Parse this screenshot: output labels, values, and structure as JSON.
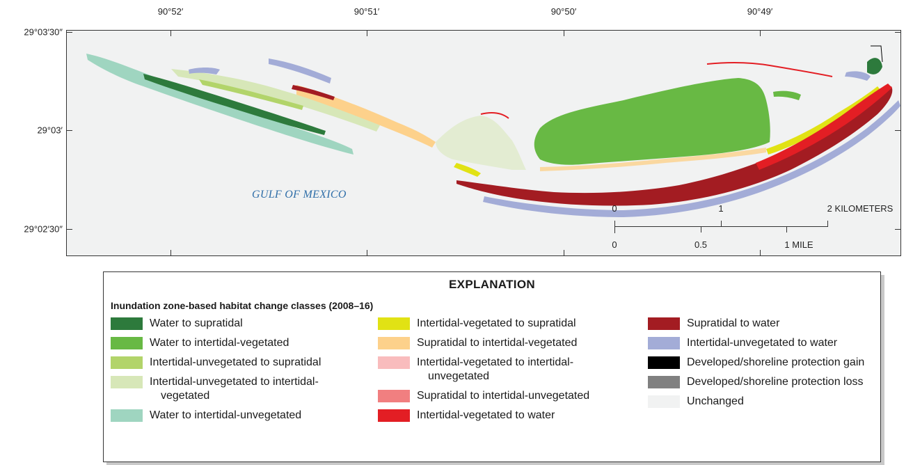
{
  "map": {
    "top_longitudes": [
      "90°52′",
      "90°51′",
      "90°50′",
      "90°49′"
    ],
    "left_latitudes": [
      "29°03′30″",
      "29°03′",
      "29°02′30″"
    ],
    "water_label": "GULF OF MEXICO",
    "scale": {
      "km_labels": [
        "0",
        "1",
        "2 KILOMETERS"
      ],
      "mile_labels": [
        "0",
        "0.5",
        "1 MILE"
      ]
    }
  },
  "legend": {
    "title": "EXPLANATION",
    "subtitle": "Inundation zone-based habitat change classes (2008–16)",
    "columns": [
      [
        {
          "label": "Water to supratidal",
          "color": "#2d7a3c"
        },
        {
          "label": "Water to intertidal-vegetated",
          "color": "#68b944"
        },
        {
          "label": "Intertidal-unvegetated to supratidal",
          "color": "#b2d46a"
        },
        {
          "label": "Intertidal-unvegetated to intertidal-vegetated",
          "color": "#d7e7b8"
        },
        {
          "label": "Water to intertidal-unvegetated",
          "color": "#9fd5c0"
        }
      ],
      [
        {
          "label": "Intertidal-vegetated to supratidal",
          "color": "#e1e214"
        },
        {
          "label": "Supratidal to intertidal-vegetated",
          "color": "#fdd18b"
        },
        {
          "label": "Intertidal-vegetated to intertidal-unvegetated",
          "color": "#f9bcbd"
        },
        {
          "label": "Supratidal to intertidal-unvegetated",
          "color": "#f17f80"
        },
        {
          "label": "Intertidal-vegetated to water",
          "color": "#e31e24"
        }
      ],
      [
        {
          "label": "Supratidal to water",
          "color": "#a31c22"
        },
        {
          "label": "Intertidal-unvegetated to water",
          "color": "#a3acd7"
        },
        {
          "label": "Developed/shoreline protection gain",
          "color": "#000000"
        },
        {
          "label": "Developed/shoreline protection loss",
          "color": "#808080"
        },
        {
          "label": "Unchanged",
          "color": "#f1f2f2"
        }
      ]
    ]
  }
}
